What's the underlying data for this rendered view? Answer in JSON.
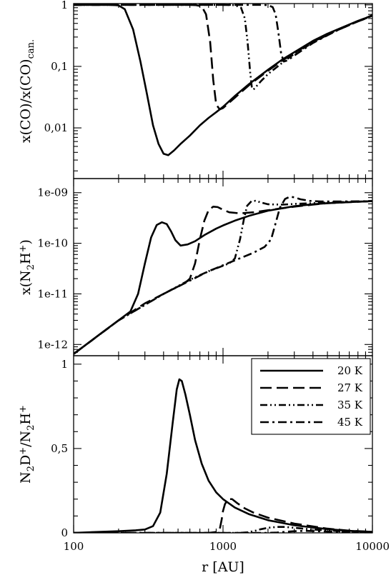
{
  "chart_data": [
    {
      "type": "line",
      "xscale": "log",
      "yscale": "log",
      "xlim": [
        100,
        10000
      ],
      "ylim": [
        0.0015,
        1.05
      ],
      "ylabel_parts": [
        "x(CO)/x(CO)",
        "can."
      ],
      "xticks": [
        100,
        1000,
        10000
      ],
      "yticks": [
        0.01,
        0.1,
        1
      ],
      "ytick_labels": [
        "0,01",
        "0,1",
        "1"
      ],
      "series": [
        {
          "style": "solid",
          "points": [
            [
              100,
              1
            ],
            [
              180,
              1
            ],
            [
              200,
              0.98
            ],
            [
              220,
              0.85
            ],
            [
              250,
              0.4
            ],
            [
              280,
              0.12
            ],
            [
              310,
              0.035
            ],
            [
              340,
              0.011
            ],
            [
              370,
              0.0055
            ],
            [
              400,
              0.0038
            ],
            [
              430,
              0.0036
            ],
            [
              470,
              0.0043
            ],
            [
              520,
              0.0055
            ],
            [
              600,
              0.0075
            ],
            [
              700,
              0.011
            ],
            [
              800,
              0.0145
            ],
            [
              900,
              0.018
            ],
            [
              1000,
              0.022
            ],
            [
              1200,
              0.033
            ],
            [
              1500,
              0.052
            ],
            [
              2000,
              0.088
            ],
            [
              2500,
              0.13
            ],
            [
              3000,
              0.17
            ],
            [
              4000,
              0.26
            ],
            [
              5000,
              0.34
            ],
            [
              6000,
              0.41
            ],
            [
              7000,
              0.48
            ],
            [
              8000,
              0.55
            ],
            [
              9000,
              0.61
            ],
            [
              10000,
              0.68
            ]
          ]
        },
        {
          "style": "long-dash",
          "points": [
            [
              100,
              1
            ],
            [
              600,
              1
            ],
            [
              660,
              0.99
            ],
            [
              720,
              0.95
            ],
            [
              770,
              0.7
            ],
            [
              820,
              0.25
            ],
            [
              860,
              0.06
            ],
            [
              900,
              0.024
            ],
            [
              950,
              0.02
            ],
            [
              1000,
              0.021
            ],
            [
              1200,
              0.031
            ],
            [
              1500,
              0.05
            ],
            [
              2000,
              0.085
            ],
            [
              2500,
              0.125
            ],
            [
              3000,
              0.165
            ],
            [
              4000,
              0.25
            ],
            [
              5000,
              0.33
            ],
            [
              6000,
              0.4
            ],
            [
              7000,
              0.47
            ],
            [
              8000,
              0.54
            ],
            [
              9000,
              0.6
            ],
            [
              10000,
              0.67
            ]
          ]
        },
        {
          "style": "dash-dot-dot",
          "points": [
            [
              100,
              1
            ],
            [
              1000,
              1
            ],
            [
              1200,
              0.99
            ],
            [
              1320,
              0.9
            ],
            [
              1400,
              0.6
            ],
            [
              1460,
              0.25
            ],
            [
              1520,
              0.08
            ],
            [
              1560,
              0.045
            ],
            [
              1600,
              0.042
            ],
            [
              1800,
              0.058
            ],
            [
              2000,
              0.075
            ],
            [
              2500,
              0.115
            ],
            [
              3000,
              0.16
            ],
            [
              4000,
              0.245
            ],
            [
              5000,
              0.325
            ],
            [
              6000,
              0.4
            ],
            [
              7000,
              0.47
            ],
            [
              8000,
              0.54
            ],
            [
              9000,
              0.6
            ],
            [
              10000,
              0.67
            ]
          ]
        },
        {
          "style": "dash-dot",
          "points": [
            [
              100,
              1
            ],
            [
              1800,
              1
            ],
            [
              2000,
              0.99
            ],
            [
              2150,
              0.92
            ],
            [
              2250,
              0.7
            ],
            [
              2350,
              0.35
            ],
            [
              2450,
              0.16
            ],
            [
              2550,
              0.12
            ],
            [
              2700,
              0.125
            ],
            [
              3000,
              0.15
            ],
            [
              4000,
              0.24
            ],
            [
              5000,
              0.32
            ],
            [
              6000,
              0.4
            ],
            [
              7000,
              0.47
            ],
            [
              8000,
              0.54
            ],
            [
              9000,
              0.6
            ],
            [
              10000,
              0.67
            ]
          ]
        }
      ]
    },
    {
      "type": "line",
      "xscale": "log",
      "yscale": "log",
      "xlim": [
        100,
        10000
      ],
      "ylim": [
        6e-13,
        1.9e-09
      ],
      "ylabel_parts": [
        "x(N",
        "2",
        "H",
        "+",
        ")"
      ],
      "xticks": [
        100,
        1000,
        10000
      ],
      "yticks": [
        1e-12,
        1e-11,
        1e-10,
        1e-09
      ],
      "ytick_labels": [
        "1e-12",
        "1e-11",
        "1e-10",
        "1e-09"
      ],
      "series": [
        {
          "style": "solid",
          "points": [
            [
              100,
              6.5e-13
            ],
            [
              150,
              1.6e-12
            ],
            [
              200,
              3e-12
            ],
            [
              240,
              4.5e-12
            ],
            [
              270,
              1e-11
            ],
            [
              300,
              4e-11
            ],
            [
              330,
              1.3e-10
            ],
            [
              360,
              2.3e-10
            ],
            [
              390,
              2.6e-10
            ],
            [
              420,
              2.4e-10
            ],
            [
              450,
              1.7e-10
            ],
            [
              480,
              1.15e-10
            ],
            [
              520,
              9e-11
            ],
            [
              580,
              9.5e-11
            ],
            [
              650,
              1.1e-10
            ],
            [
              750,
              1.45e-10
            ],
            [
              900,
              1.95e-10
            ],
            [
              1000,
              2.25e-10
            ],
            [
              1200,
              2.8e-10
            ],
            [
              1500,
              3.5e-10
            ],
            [
              2000,
              4.4e-10
            ],
            [
              3000,
              5.4e-10
            ],
            [
              4000,
              5.9e-10
            ],
            [
              5000,
              6.2e-10
            ],
            [
              7000,
              6.5e-10
            ],
            [
              10000,
              6.8e-10
            ]
          ]
        },
        {
          "style": "long-dash",
          "points": [
            [
              100,
              6.5e-13
            ],
            [
              200,
              3e-12
            ],
            [
              300,
              6.5e-12
            ],
            [
              400,
              1e-11
            ],
            [
              500,
              1.4e-11
            ],
            [
              550,
              1.6e-11
            ],
            [
              600,
              2e-11
            ],
            [
              650,
              4e-11
            ],
            [
              700,
              1.2e-10
            ],
            [
              750,
              2.8e-10
            ],
            [
              800,
              4.5e-10
            ],
            [
              860,
              5.3e-10
            ],
            [
              920,
              5.2e-10
            ],
            [
              1000,
              4.6e-10
            ],
            [
              1100,
              4.1e-10
            ],
            [
              1300,
              3.9e-10
            ],
            [
              1600,
              4.1e-10
            ],
            [
              2000,
              4.5e-10
            ],
            [
              3000,
              5.3e-10
            ],
            [
              4000,
              5.8e-10
            ],
            [
              5000,
              6.2e-10
            ],
            [
              7000,
              6.5e-10
            ],
            [
              10000,
              6.8e-10
            ]
          ]
        },
        {
          "style": "dash-dot-dot",
          "points": [
            [
              100,
              6.5e-13
            ],
            [
              200,
              3e-12
            ],
            [
              400,
              1e-11
            ],
            [
              600,
              1.9e-11
            ],
            [
              800,
              2.8e-11
            ],
            [
              1000,
              3.6e-11
            ],
            [
              1100,
              4e-11
            ],
            [
              1200,
              5e-11
            ],
            [
              1300,
              1.2e-10
            ],
            [
              1380,
              3e-10
            ],
            [
              1450,
              5.5e-10
            ],
            [
              1550,
              6.8e-10
            ],
            [
              1650,
              6.9e-10
            ],
            [
              1800,
              6.4e-10
            ],
            [
              2000,
              5.9e-10
            ],
            [
              2500,
              5.8e-10
            ],
            [
              3000,
              6e-10
            ],
            [
              4000,
              6.2e-10
            ],
            [
              5000,
              6.4e-10
            ],
            [
              7000,
              6.6e-10
            ],
            [
              10000,
              6.8e-10
            ]
          ]
        },
        {
          "style": "dash-dot",
          "points": [
            [
              100,
              6.5e-13
            ],
            [
              200,
              3e-12
            ],
            [
              400,
              1e-11
            ],
            [
              800,
              2.8e-11
            ],
            [
              1200,
              4.6e-11
            ],
            [
              1600,
              6.5e-11
            ],
            [
              1900,
              8.5e-11
            ],
            [
              2100,
              1.2e-10
            ],
            [
              2250,
              2.5e-10
            ],
            [
              2400,
              5e-10
            ],
            [
              2600,
              7.5e-10
            ],
            [
              2800,
              8.3e-10
            ],
            [
              3000,
              8.1e-10
            ],
            [
              3300,
              7.4e-10
            ],
            [
              3800,
              6.9e-10
            ],
            [
              4500,
              6.7e-10
            ],
            [
              6000,
              6.7e-10
            ],
            [
              10000,
              6.8e-10
            ]
          ]
        }
      ]
    },
    {
      "type": "line",
      "xscale": "log",
      "yscale": "linear",
      "xlim": [
        100,
        10000
      ],
      "ylim": [
        0,
        1.05
      ],
      "xlabel": "r [AU]",
      "ylabel_parts": [
        "N",
        "2",
        "D",
        "+",
        "/N",
        "2",
        "H",
        "+"
      ],
      "xticks": [
        100,
        1000,
        10000
      ],
      "xtick_labels": [
        "100",
        "1000",
        "10000"
      ],
      "yticks": [
        0,
        0.5,
        1
      ],
      "ytick_labels": [
        "0",
        "0,5",
        "1"
      ],
      "legend": {
        "position": "top-right",
        "entries": [
          {
            "label": "20 K",
            "style": "solid"
          },
          {
            "label": "27 K",
            "style": "long-dash"
          },
          {
            "label": "35 K",
            "style": "dash-dot-dot"
          },
          {
            "label": "45 K",
            "style": "dash-dot"
          }
        ]
      },
      "series": [
        {
          "style": "solid",
          "points": [
            [
              100,
              0.0
            ],
            [
              200,
              0.01
            ],
            [
              260,
              0.015
            ],
            [
              300,
              0.02
            ],
            [
              340,
              0.04
            ],
            [
              380,
              0.12
            ],
            [
              420,
              0.35
            ],
            [
              460,
              0.65
            ],
            [
              490,
              0.85
            ],
            [
              510,
              0.91
            ],
            [
              530,
              0.9
            ],
            [
              560,
              0.82
            ],
            [
              600,
              0.7
            ],
            [
              650,
              0.55
            ],
            [
              720,
              0.41
            ],
            [
              800,
              0.31
            ],
            [
              900,
              0.24
            ],
            [
              1000,
              0.2
            ],
            [
              1200,
              0.15
            ],
            [
              1500,
              0.11
            ],
            [
              2000,
              0.075
            ],
            [
              3000,
              0.045
            ],
            [
              5000,
              0.022
            ],
            [
              7000,
              0.012
            ],
            [
              10000,
              0.006
            ]
          ]
        },
        {
          "style": "long-dash",
          "points": [
            [
              100,
              0
            ],
            [
              800,
              0
            ],
            [
              900,
              0.005
            ],
            [
              950,
              0.02
            ],
            [
              980,
              0.08
            ],
            [
              1000,
              0.13
            ],
            [
              1030,
              0.17
            ],
            [
              1080,
              0.2
            ],
            [
              1150,
              0.2
            ],
            [
              1250,
              0.175
            ],
            [
              1400,
              0.145
            ],
            [
              1600,
              0.12
            ],
            [
              2000,
              0.09
            ],
            [
              3000,
              0.055
            ],
            [
              5000,
              0.025
            ],
            [
              7000,
              0.013
            ],
            [
              10000,
              0.006
            ]
          ]
        },
        {
          "style": "dash-dot-dot",
          "points": [
            [
              100,
              0
            ],
            [
              1300,
              0
            ],
            [
              1450,
              0.003
            ],
            [
              1600,
              0.01
            ],
            [
              1800,
              0.022
            ],
            [
              2000,
              0.03
            ],
            [
              2300,
              0.035
            ],
            [
              2600,
              0.035
            ],
            [
              3000,
              0.03
            ],
            [
              4000,
              0.02
            ],
            [
              6000,
              0.01
            ],
            [
              10000,
              0.005
            ]
          ]
        },
        {
          "style": "dash-dot",
          "points": [
            [
              100,
              0
            ],
            [
              2000,
              0
            ],
            [
              2300,
              0.002
            ],
            [
              2600,
              0.006
            ],
            [
              3000,
              0.01
            ],
            [
              3500,
              0.012
            ],
            [
              4200,
              0.01
            ],
            [
              6000,
              0.006
            ],
            [
              10000,
              0.003
            ]
          ]
        }
      ]
    }
  ]
}
